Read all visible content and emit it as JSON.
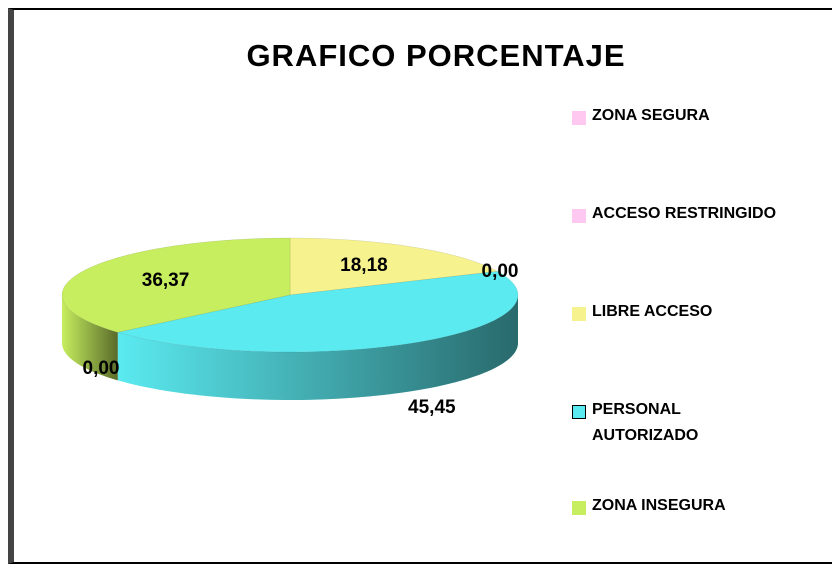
{
  "chart_data": {
    "type": "pie",
    "title": "GRAFICO PORCENTAJE",
    "categories": [
      "ZONA SEGURA",
      "ACCESO RESTRINGIDO",
      "LIBRE ACCESO",
      "PERSONAL AUTORIZADO",
      "ZONA INSEGURA"
    ],
    "values": [
      0.0,
      0.0,
      18.18,
      45.45,
      36.37
    ],
    "value_labels": [
      "0,00",
      "0,00",
      "18,18",
      "45,45",
      "36,37"
    ],
    "colors": [
      "#ffc8f0",
      "#ffc8f0",
      "#f6f28e",
      "#5aeaf0",
      "#c6ee5e"
    ],
    "legend": "right"
  }
}
